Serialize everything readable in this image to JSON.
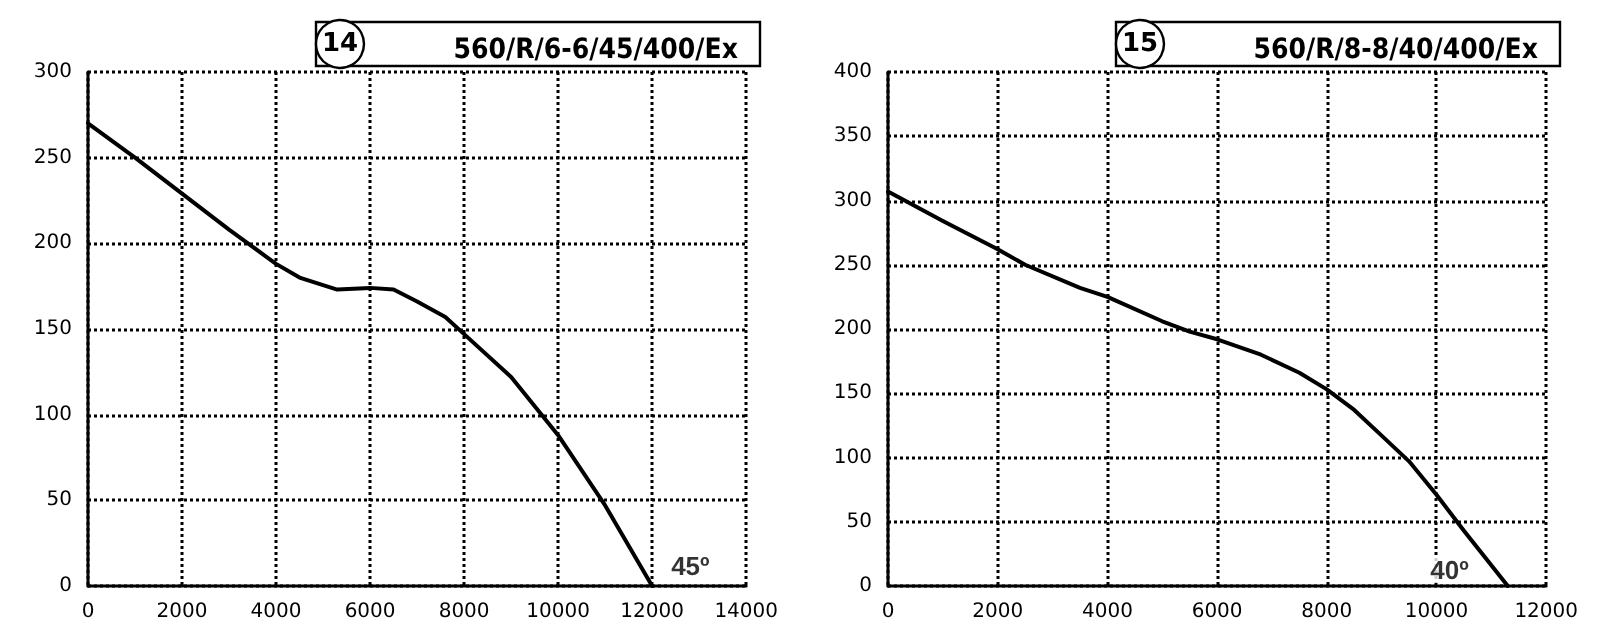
{
  "chart_data": [
    {
      "type": "line",
      "title": "560/R/6-6/45/400/Ex",
      "annotations": [
        "14",
        {
          "text": "45º",
          "x": 12000,
          "y": 0
        }
      ],
      "x": [
        0,
        1000,
        2000,
        3000,
        4000,
        4500,
        5300,
        6000,
        6500,
        7000,
        7600,
        8000,
        9000,
        10000,
        11000,
        12000
      ],
      "series": [
        {
          "color": "#000000",
          "values": [
            270,
            250,
            229,
            208,
            188,
            180,
            173,
            174,
            173,
            166,
            157,
            147,
            122,
            88,
            47,
            0
          ]
        }
      ],
      "xlim": [
        0,
        14000
      ],
      "xticks": [
        0,
        2000,
        4000,
        6000,
        8000,
        10000,
        12000,
        14000
      ],
      "ylim": [
        0,
        300
      ],
      "yticks": [
        0,
        50,
        100,
        150,
        200,
        250,
        300
      ],
      "grid": true,
      "marker": "none",
      "line_style": "solid"
    },
    {
      "type": "line",
      "title": "560/R/8-8/40/400/Ex",
      "annotations": [
        "15",
        {
          "text": "40º",
          "x": 11300,
          "y": 0
        }
      ],
      "x": [
        0,
        1000,
        2000,
        2500,
        3500,
        4000,
        5000,
        5500,
        6000,
        6800,
        7500,
        8000,
        8500,
        9000,
        9500,
        10000,
        10500,
        11300
      ],
      "series": [
        {
          "color": "#000000",
          "values": [
            307,
            284,
            262,
            250,
            232,
            225,
            206,
            198,
            192,
            180,
            166,
            153,
            137,
            117,
            97,
            71,
            43,
            0
          ]
        }
      ],
      "xlim": [
        0,
        12000
      ],
      "xticks": [
        0,
        2000,
        4000,
        6000,
        8000,
        10000,
        12000
      ],
      "ylim": [
        0,
        400
      ],
      "yticks": [
        0,
        50,
        100,
        150,
        200,
        250,
        300,
        350,
        400
      ],
      "grid": true,
      "marker": "none",
      "line_style": "solid"
    }
  ]
}
